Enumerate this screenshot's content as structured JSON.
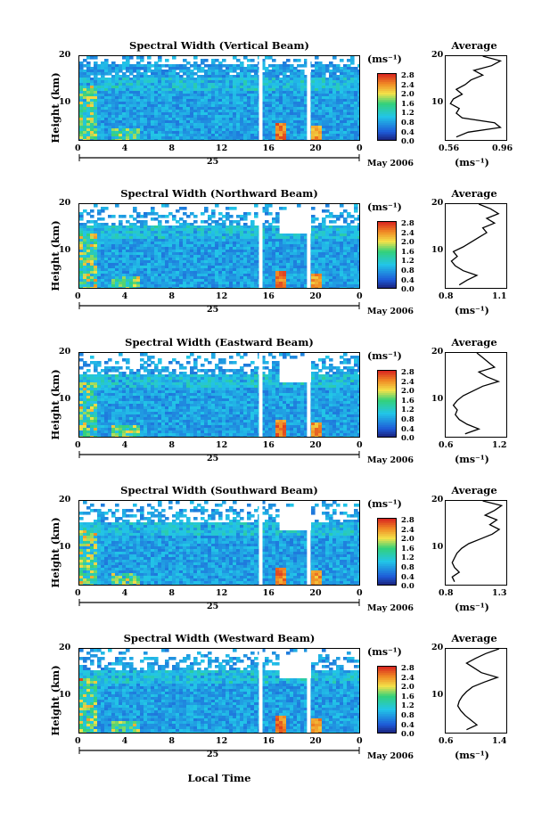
{
  "xlabel": "Local Time",
  "date_label": "May 2006",
  "day_label": "25",
  "ylabel": "Height (km)",
  "unit": "(ms⁻¹)",
  "avg_title": "Average",
  "colorbar_ticks": [
    "2.8",
    "2.4",
    "2.0",
    "1.6",
    "1.2",
    "0.8",
    "0.4",
    "0.0"
  ],
  "colors": {
    "low": "#1a237e",
    "blue": "#1e5bd8",
    "cyan": "#22c5e8",
    "green": "#33d17a",
    "yellow": "#f2e24a",
    "orange": "#f08a24",
    "red": "#d8231f"
  },
  "chart_data": [
    {
      "type": "heatmap",
      "title": "Spectral Width (Vertical Beam)",
      "x_ticks": [
        "0",
        "4",
        "8",
        "12",
        "16",
        "20",
        "0"
      ],
      "y_ticks": [
        "20",
        "10"
      ],
      "xlim": [
        0,
        24
      ],
      "ylim": [
        2,
        20
      ],
      "average": {
        "title": "Average",
        "x_ticks": [
          "0.56",
          "0.96"
        ],
        "y_ticks": [
          "20",
          "10"
        ],
        "xlim": [
          0.56,
          0.96
        ],
        "profile": [
          [
            0.62,
            3
          ],
          [
            0.7,
            4
          ],
          [
            0.92,
            5
          ],
          [
            0.88,
            6
          ],
          [
            0.66,
            7
          ],
          [
            0.62,
            8
          ],
          [
            0.64,
            9
          ],
          [
            0.58,
            10
          ],
          [
            0.6,
            11
          ],
          [
            0.66,
            12
          ],
          [
            0.62,
            13
          ],
          [
            0.68,
            14
          ],
          [
            0.72,
            15
          ],
          [
            0.8,
            16
          ],
          [
            0.74,
            17
          ],
          [
            0.86,
            18
          ],
          [
            0.92,
            19
          ],
          [
            0.8,
            20
          ]
        ]
      }
    },
    {
      "type": "heatmap",
      "title": "Spectral Width (Northward Beam)",
      "x_ticks": [
        "0",
        "4",
        "8",
        "12",
        "16",
        "20",
        "0"
      ],
      "y_ticks": [
        "20",
        "10"
      ],
      "xlim": [
        0,
        24
      ],
      "ylim": [
        2,
        20
      ],
      "average": {
        "title": "Average",
        "x_ticks": [
          "0.8",
          "1.1"
        ],
        "y_ticks": [
          "20",
          "10"
        ],
        "xlim": [
          0.8,
          1.1
        ],
        "profile": [
          [
            0.86,
            3
          ],
          [
            0.9,
            4
          ],
          [
            0.95,
            5
          ],
          [
            0.88,
            6
          ],
          [
            0.84,
            7
          ],
          [
            0.82,
            8
          ],
          [
            0.85,
            9
          ],
          [
            0.83,
            10
          ],
          [
            0.88,
            11
          ],
          [
            0.92,
            12
          ],
          [
            0.96,
            13
          ],
          [
            1.0,
            14
          ],
          [
            0.98,
            15
          ],
          [
            1.04,
            16
          ],
          [
            1.0,
            17
          ],
          [
            1.06,
            18
          ],
          [
            1.02,
            19
          ],
          [
            0.96,
            20
          ]
        ]
      }
    },
    {
      "type": "heatmap",
      "title": "Spectral Width (Eastward Beam)",
      "x_ticks": [
        "0",
        "4",
        "8",
        "12",
        "16",
        "20",
        "0"
      ],
      "y_ticks": [
        "20",
        "10"
      ],
      "xlim": [
        0,
        24
      ],
      "ylim": [
        2,
        20
      ],
      "average": {
        "title": "Average",
        "x_ticks": [
          "0.6",
          "1.2"
        ],
        "y_ticks": [
          "20",
          "10"
        ],
        "xlim": [
          0.6,
          1.2
        ],
        "profile": [
          [
            0.78,
            3
          ],
          [
            0.92,
            4
          ],
          [
            0.8,
            5
          ],
          [
            0.72,
            6
          ],
          [
            0.68,
            7
          ],
          [
            0.7,
            8
          ],
          [
            0.66,
            9
          ],
          [
            0.7,
            10
          ],
          [
            0.76,
            11
          ],
          [
            0.86,
            12
          ],
          [
            0.96,
            13
          ],
          [
            1.12,
            14
          ],
          [
            1.0,
            15
          ],
          [
            0.92,
            16
          ],
          [
            1.08,
            17
          ],
          [
            1.02,
            18
          ],
          [
            0.96,
            19
          ],
          [
            0.9,
            20
          ]
        ]
      }
    },
    {
      "type": "heatmap",
      "title": "Spectral Width (Southward Beam)",
      "x_ticks": [
        "0",
        "4",
        "8",
        "12",
        "16",
        "20",
        "0"
      ],
      "y_ticks": [
        "20",
        "10"
      ],
      "xlim": [
        0,
        24
      ],
      "ylim": [
        2,
        20
      ],
      "average": {
        "title": "Average",
        "x_ticks": [
          "0.8",
          "1.3"
        ],
        "y_ticks": [
          "20",
          "10"
        ],
        "xlim": [
          0.8,
          1.3
        ],
        "profile": [
          [
            0.86,
            3
          ],
          [
            0.84,
            4
          ],
          [
            0.9,
            5
          ],
          [
            0.86,
            6
          ],
          [
            0.84,
            7
          ],
          [
            0.86,
            8
          ],
          [
            0.88,
            9
          ],
          [
            0.92,
            10
          ],
          [
            0.98,
            11
          ],
          [
            1.08,
            12
          ],
          [
            1.18,
            13
          ],
          [
            1.24,
            14
          ],
          [
            1.16,
            15
          ],
          [
            1.22,
            16
          ],
          [
            1.12,
            17
          ],
          [
            1.2,
            18
          ],
          [
            1.26,
            19
          ],
          [
            1.1,
            20
          ]
        ]
      }
    },
    {
      "type": "heatmap",
      "title": "Spectral Width (Westward Beam)",
      "x_ticks": [
        "0",
        "4",
        "8",
        "12",
        "16",
        "20",
        "0"
      ],
      "y_ticks": [
        "20",
        "10"
      ],
      "xlim": [
        0,
        24
      ],
      "ylim": [
        2,
        20
      ],
      "average": {
        "title": "Average",
        "x_ticks": [
          "0.6",
          "1.4"
        ],
        "y_ticks": [
          "20",
          "10"
        ],
        "xlim": [
          0.6,
          1.4
        ],
        "profile": [
          [
            0.86,
            3
          ],
          [
            1.0,
            4
          ],
          [
            0.92,
            5
          ],
          [
            0.84,
            6
          ],
          [
            0.78,
            7
          ],
          [
            0.74,
            8
          ],
          [
            0.76,
            9
          ],
          [
            0.8,
            10
          ],
          [
            0.86,
            11
          ],
          [
            0.94,
            12
          ],
          [
            1.1,
            13
          ],
          [
            1.28,
            14
          ],
          [
            1.06,
            15
          ],
          [
            0.96,
            16
          ],
          [
            0.86,
            17
          ],
          [
            0.98,
            18
          ],
          [
            1.12,
            19
          ],
          [
            1.3,
            20
          ]
        ]
      }
    }
  ]
}
